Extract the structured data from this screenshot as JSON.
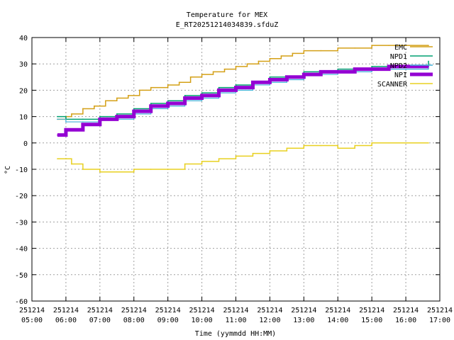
{
  "chart_data": {
    "type": "line",
    "title": "Temperature for MEX",
    "subtitle": "E_RT20251214034839.sfduZ",
    "xlabel": "Time (yymmdd HH:MM)",
    "ylabel": "°C",
    "ylim": [
      -60,
      40
    ],
    "yticks": [
      -60,
      -50,
      -40,
      -30,
      -20,
      -10,
      0,
      10,
      20,
      30,
      40
    ],
    "xlim": [
      "2025-12-14 05:00",
      "2025-12-14 17:00"
    ],
    "xticks": [
      {
        "date": "251214",
        "time": "05:00"
      },
      {
        "date": "251214",
        "time": "06:00"
      },
      {
        "date": "251214",
        "time": "07:00"
      },
      {
        "date": "251214",
        "time": "08:00"
      },
      {
        "date": "251214",
        "time": "09:00"
      },
      {
        "date": "251214",
        "time": "10:00"
      },
      {
        "date": "251214",
        "time": "11:00"
      },
      {
        "date": "251214",
        "time": "12:00"
      },
      {
        "date": "251214",
        "time": "13:00"
      },
      {
        "date": "251214",
        "time": "14:00"
      },
      {
        "date": "251214",
        "time": "15:00"
      },
      {
        "date": "251214",
        "time": "16:00"
      },
      {
        "date": "251214",
        "time": "17:00"
      }
    ],
    "grid": true,
    "legend_position": "top-right",
    "series": [
      {
        "name": "EMC",
        "color": "#d4a017",
        "x": [
          "05:45",
          "06:00",
          "06:10",
          "06:30",
          "06:50",
          "07:10",
          "07:30",
          "07:50",
          "08:10",
          "08:30",
          "09:00",
          "09:20",
          "09:40",
          "10:00",
          "10:20",
          "10:40",
          "11:00",
          "11:20",
          "11:40",
          "12:00",
          "12:20",
          "12:40",
          "13:00",
          "13:30",
          "14:00",
          "14:30",
          "15:00",
          "15:30",
          "16:00",
          "16:40"
        ],
        "y": [
          9,
          10,
          11,
          13,
          14,
          16,
          17,
          18,
          20,
          21,
          22,
          23,
          25,
          26,
          27,
          28,
          29,
          30,
          31,
          32,
          33,
          34,
          35,
          35,
          36,
          36,
          37,
          37,
          37,
          37
        ]
      },
      {
        "name": "NPD1",
        "color": "#00a070",
        "x": [
          "05:45",
          "06:00",
          "06:30",
          "07:00",
          "07:30",
          "08:00",
          "08:30",
          "09:00",
          "09:30",
          "10:00",
          "10:30",
          "11:00",
          "11:30",
          "12:00",
          "12:30",
          "13:00",
          "13:30",
          "14:00",
          "14:30",
          "15:00",
          "15:30",
          "16:00",
          "16:40"
        ],
        "y": [
          10,
          9,
          9,
          10,
          11,
          13,
          15,
          16,
          18,
          19,
          21,
          22,
          23,
          25,
          25,
          27,
          27,
          28,
          28,
          29,
          29,
          29,
          31
        ]
      },
      {
        "name": "NPD2",
        "color": "#40b0d8",
        "x": [
          "05:45",
          "06:00",
          "06:30",
          "07:00",
          "07:30",
          "08:00",
          "08:30",
          "09:00",
          "09:30",
          "10:00",
          "10:30",
          "11:00",
          "11:30",
          "12:00",
          "12:30",
          "13:00",
          "13:30",
          "14:00",
          "14:30",
          "15:00",
          "15:30",
          "16:00",
          "16:40"
        ],
        "y": [
          9,
          8,
          8,
          9,
          9,
          11,
          13,
          14,
          16,
          17,
          19,
          20,
          22,
          23,
          24,
          26,
          26,
          27,
          27,
          28,
          28,
          28,
          29
        ]
      },
      {
        "name": "NPI",
        "color": "#9400d3",
        "x": [
          "05:45",
          "06:00",
          "06:30",
          "07:00",
          "07:30",
          "08:00",
          "08:30",
          "09:00",
          "09:30",
          "10:00",
          "10:30",
          "11:00",
          "11:30",
          "12:00",
          "12:30",
          "13:00",
          "13:30",
          "14:00",
          "14:30",
          "15:00",
          "15:30",
          "16:00",
          "16:40"
        ],
        "y": [
          3,
          5,
          7,
          9,
          10,
          12,
          14,
          15,
          17,
          18,
          20,
          21,
          23,
          24,
          25,
          26,
          27,
          27,
          28,
          28,
          29,
          29,
          29
        ]
      },
      {
        "name": "SCANNER",
        "color": "#e8d020",
        "x": [
          "05:45",
          "06:10",
          "06:30",
          "07:00",
          "07:30",
          "08:00",
          "08:30",
          "09:00",
          "09:30",
          "10:00",
          "10:30",
          "11:00",
          "11:30",
          "12:00",
          "12:30",
          "13:00",
          "13:30",
          "14:00",
          "14:30",
          "15:00",
          "15:30",
          "16:00",
          "16:40"
        ],
        "y": [
          -6,
          -8,
          -10,
          -11,
          -11,
          -10,
          -10,
          -10,
          -8,
          -7,
          -6,
          -5,
          -4,
          -3,
          -2,
          -1,
          -1,
          -2,
          -1,
          0,
          0,
          0,
          0
        ]
      }
    ]
  }
}
